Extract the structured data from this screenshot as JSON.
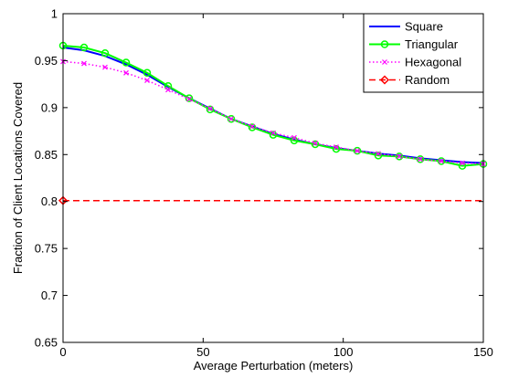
{
  "chart_data": {
    "type": "line",
    "title": "",
    "xlabel": "Average Perturbation (meters)",
    "ylabel": "Fraction of Client Locations Covered",
    "xlim": [
      0,
      150
    ],
    "ylim": [
      0.65,
      1.0
    ],
    "xticks": [
      0,
      50,
      100,
      150
    ],
    "xtick_labels": [
      "0",
      "50",
      "100",
      "150"
    ],
    "yticks": [
      0.65,
      0.7,
      0.75,
      0.8,
      0.85,
      0.9,
      0.95,
      1.0
    ],
    "ytick_labels": [
      "0.65",
      "0.7",
      "0.75",
      "0.8",
      "0.85",
      "0.9",
      "0.95",
      "1"
    ],
    "grid": false,
    "legend_position": "top-right",
    "series": [
      {
        "name": "Square",
        "color": "#0000ff",
        "style": "solid",
        "marker": "none",
        "x": [
          0,
          7.5,
          15,
          22.5,
          30,
          37.5,
          45,
          52.5,
          60,
          67.5,
          75,
          82.5,
          90,
          97.5,
          105,
          112.5,
          120,
          127.5,
          135,
          142.5,
          150
        ],
        "y": [
          0.964,
          0.961,
          0.955,
          0.946,
          0.935,
          0.922,
          0.91,
          0.899,
          0.888,
          0.88,
          0.872,
          0.866,
          0.861,
          0.857,
          0.854,
          0.851,
          0.849,
          0.846,
          0.844,
          0.842,
          0.841
        ]
      },
      {
        "name": "Triangular",
        "color": "#00ff00",
        "style": "solid",
        "marker": "circle",
        "x": [
          0,
          7.5,
          15,
          22.5,
          30,
          37.5,
          45,
          52.5,
          60,
          67.5,
          75,
          82.5,
          90,
          97.5,
          105,
          112.5,
          120,
          127.5,
          135,
          142.5,
          150
        ],
        "y": [
          0.966,
          0.964,
          0.958,
          0.948,
          0.937,
          0.923,
          0.91,
          0.898,
          0.888,
          0.879,
          0.871,
          0.865,
          0.861,
          0.856,
          0.854,
          0.849,
          0.848,
          0.845,
          0.843,
          0.838,
          0.84
        ]
      },
      {
        "name": "Hexagonal",
        "color": "#ff00ff",
        "style": "dotted",
        "marker": "x",
        "x": [
          0,
          7.5,
          15,
          22.5,
          30,
          37.5,
          45,
          52.5,
          60,
          67.5,
          75,
          82.5,
          90,
          97.5,
          105,
          112.5,
          120,
          127.5,
          135,
          142.5,
          150
        ],
        "y": [
          0.949,
          0.947,
          0.943,
          0.937,
          0.929,
          0.919,
          0.909,
          0.899,
          0.888,
          0.88,
          0.873,
          0.868,
          0.862,
          0.858,
          0.854,
          0.851,
          0.848,
          0.845,
          0.843,
          0.841,
          0.84
        ]
      },
      {
        "name": "Random",
        "color": "#ff0000",
        "style": "dashed",
        "marker": "diamond",
        "x": [
          0,
          150
        ],
        "y": [
          0.801,
          0.801
        ],
        "marker_x": [
          0
        ]
      }
    ]
  }
}
